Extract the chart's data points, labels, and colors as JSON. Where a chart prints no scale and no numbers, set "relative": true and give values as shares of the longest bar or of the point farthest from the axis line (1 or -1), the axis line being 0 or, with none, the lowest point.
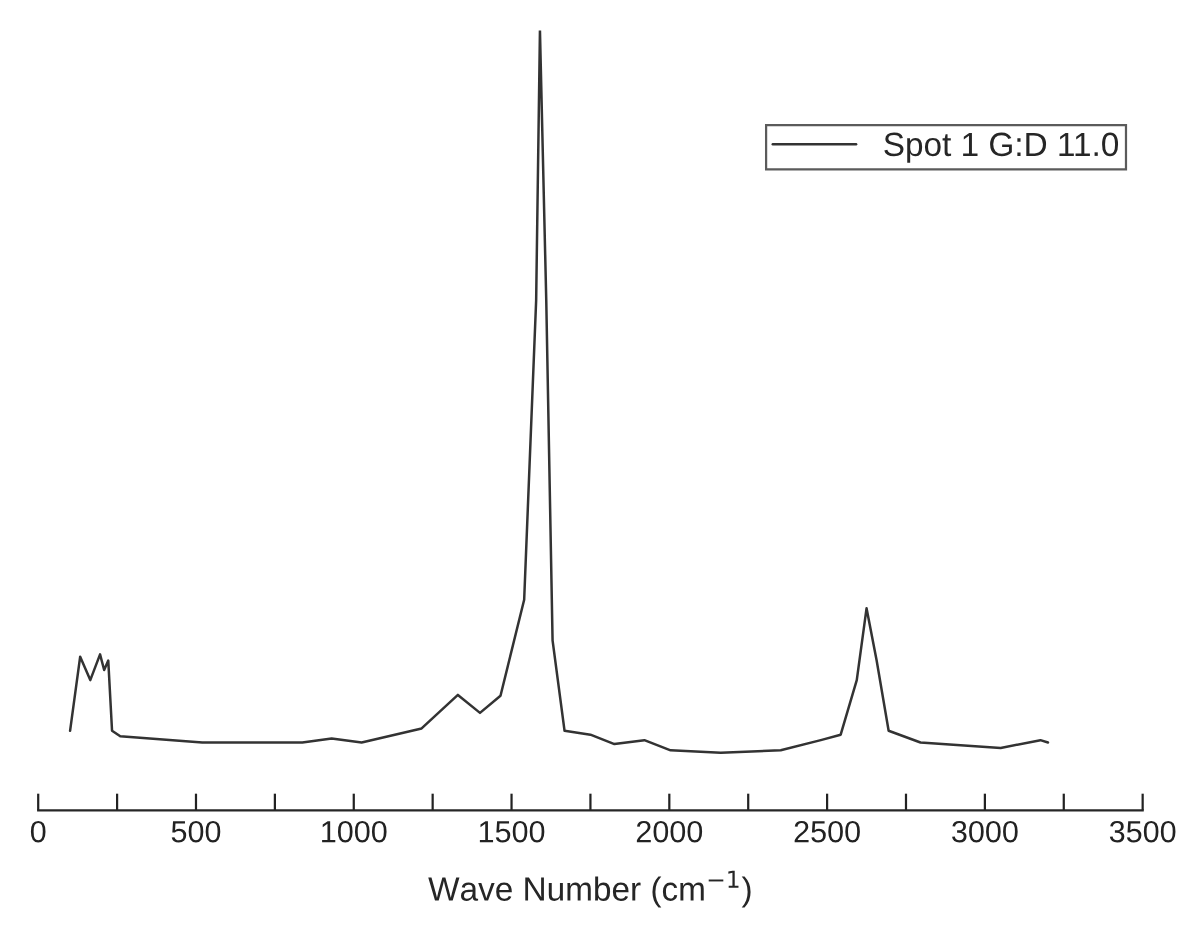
{
  "chart_data": {
    "type": "line",
    "relative": true,
    "xlabel": "Wave Number (cm$^{−1}$)",
    "xlim": [
      0,
      3500
    ],
    "xticks": [
      0,
      {
        "value": 250,
        "label": null
      },
      500,
      {
        "value": 750,
        "label": null
      },
      1000,
      {
        "value": 1250,
        "label": null
      },
      1500,
      {
        "value": 1750,
        "label": null
      },
      2000,
      {
        "value": 2250,
        "label": null
      },
      2500,
      {
        "value": 2750,
        "label": null
      },
      3000,
      {
        "value": 3250,
        "label": null
      },
      3500
    ],
    "legend": "top right",
    "tick_labels": "x",
    "series": [
      {
        "name": "Spot 1 G:D 11.0",
        "color": "#333333",
        "x": [
          101,
          133,
          165,
          196,
          209,
          222,
          234,
          260,
          520,
          837,
          930,
          1025,
          1215,
          1330,
          1400,
          1465,
          1540,
          1578,
          1590,
          1610,
          1630,
          1668,
          1750,
          1826,
          1921,
          2004,
          2163,
          2353,
          2480,
          2543,
          2594,
          2625,
          2657,
          2695,
          2796,
          3050,
          3176,
          3200
        ],
        "values": [
          0.102,
          0.197,
          0.167,
          0.2,
          0.18,
          0.192,
          0.102,
          0.095,
          0.087,
          0.087,
          0.092,
          0.087,
          0.105,
          0.148,
          0.125,
          0.147,
          0.27,
          0.654,
          1.0,
          0.654,
          0.218,
          0.102,
          0.097,
          0.085,
          0.09,
          0.077,
          0.074,
          0.077,
          0.09,
          0.097,
          0.167,
          0.259,
          0.192,
          0.102,
          0.087,
          0.08,
          0.09,
          0.087
        ]
      }
    ]
  }
}
